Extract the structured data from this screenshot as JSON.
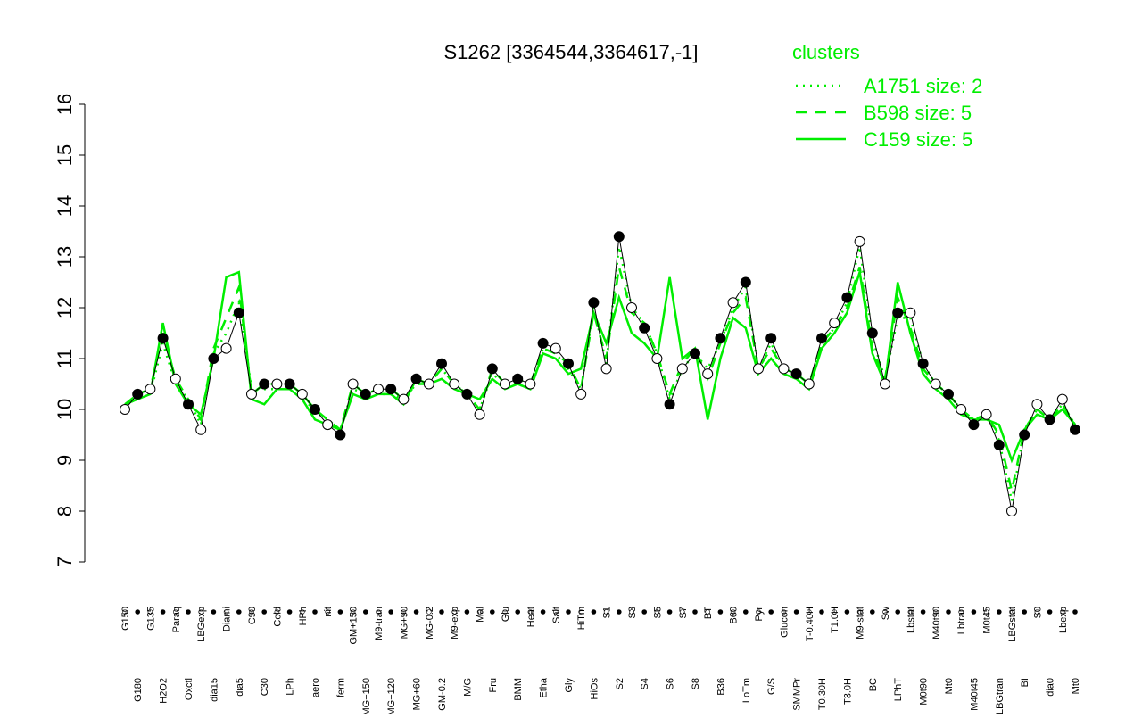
{
  "chart_data": {
    "type": "line",
    "title": "S1262 [3364544,3364617,-1]",
    "legend_title": "clusters",
    "legend_color": "#00ee00",
    "categories": [
      "G150",
      "G180",
      "G135",
      "H2O2",
      "Paraq",
      "Oxctl",
      "LBGexp",
      "dia15",
      "Diami",
      "dia5",
      "C90",
      "C30",
      "Cold",
      "LPh",
      "HPh",
      "aero",
      "nit",
      "ferm",
      "GM+150",
      "MG+150",
      "M9-tran",
      "MG+120",
      "MG+90",
      "MG+60",
      "MG-0.2",
      "GM-0.2",
      "M9-exp",
      "M/G",
      "Mal",
      "Fru",
      "Glu",
      "BMM",
      "Heat",
      "Etha",
      "Salt",
      "Gly",
      "HiTm",
      "HiOs",
      "S1",
      "S2",
      "S3",
      "S4",
      "S5",
      "S6",
      "S7",
      "S8",
      "BT",
      "B36",
      "B60",
      "LoTm",
      "Pyr",
      "G/S",
      "Glucon",
      "SMMPr",
      "T-0.40H",
      "T0.30H",
      "T1.0H",
      "T3.0H",
      "M9-stat",
      "BC",
      "Sw",
      "LPhT",
      "Lbstat",
      "M0t90",
      "M40t90",
      "Mt0",
      "Lbtran",
      "M40t45",
      "M0t45",
      "LBGtran",
      "LBGstat",
      "BI",
      "S0",
      "dia0",
      "Lbexp",
      "Mt0"
    ],
    "values": [
      10.0,
      10.3,
      10.4,
      11.4,
      10.6,
      10.1,
      9.6,
      11.0,
      11.2,
      11.9,
      10.3,
      10.5,
      10.5,
      10.5,
      10.3,
      10.0,
      9.7,
      9.5,
      10.5,
      10.3,
      10.4,
      10.4,
      10.2,
      10.6,
      10.5,
      10.9,
      10.5,
      10.3,
      9.9,
      10.8,
      10.5,
      10.6,
      10.5,
      11.3,
      11.2,
      10.9,
      10.3,
      12.1,
      10.8,
      13.4,
      12.0,
      11.6,
      11.0,
      10.1,
      10.8,
      11.1,
      10.7,
      11.4,
      12.1,
      12.5,
      10.8,
      11.4,
      10.8,
      10.7,
      10.5,
      11.4,
      11.7,
      12.2,
      13.3,
      11.5,
      10.5,
      11.9,
      11.9,
      10.9,
      10.5,
      10.3,
      10.0,
      9.7,
      9.9,
      9.3,
      8.0,
      9.5,
      10.1,
      9.8,
      10.2,
      9.6
    ],
    "color": "#000000",
    "series": [
      {
        "name": "A1751 size: 2",
        "color": "#00ee00",
        "dash": "2,6",
        "values": [
          10.1,
          10.2,
          10.3,
          11.3,
          10.5,
          10.2,
          9.7,
          11.1,
          11.5,
          12.1,
          10.4,
          10.4,
          10.4,
          10.4,
          10.2,
          10.0,
          9.8,
          9.6,
          10.4,
          10.3,
          10.3,
          10.3,
          10.2,
          10.5,
          10.5,
          10.8,
          10.5,
          10.3,
          10.0,
          10.7,
          10.5,
          10.5,
          10.4,
          11.2,
          11.1,
          10.8,
          10.4,
          12.0,
          10.9,
          13.2,
          12.0,
          11.7,
          11.1,
          10.2,
          10.8,
          11.1,
          10.8,
          11.3,
          12.0,
          12.4,
          10.8,
          11.3,
          10.8,
          10.7,
          10.5,
          11.3,
          11.6,
          12.1,
          13.2,
          11.4,
          10.6,
          11.8,
          11.8,
          10.9,
          10.5,
          10.3,
          10.0,
          9.8,
          9.9,
          9.4,
          8.2,
          9.6,
          10.0,
          9.8,
          10.1,
          9.7
        ]
      },
      {
        "name": "B598 size: 5",
        "color": "#00ee00",
        "dash": "12,10",
        "values": [
          10.1,
          10.3,
          10.4,
          11.5,
          10.6,
          10.2,
          9.8,
          11.2,
          11.8,
          12.4,
          10.3,
          10.5,
          10.5,
          10.5,
          10.3,
          10.0,
          9.8,
          9.6,
          10.5,
          10.3,
          10.4,
          10.4,
          10.2,
          10.5,
          10.5,
          10.8,
          10.5,
          10.3,
          10.0,
          10.8,
          10.5,
          10.6,
          10.5,
          11.2,
          11.1,
          10.9,
          10.4,
          11.9,
          11.0,
          12.8,
          11.9,
          11.7,
          11.1,
          10.3,
          10.9,
          11.2,
          10.6,
          11.3,
          11.9,
          12.2,
          10.8,
          11.2,
          10.8,
          10.7,
          10.5,
          11.3,
          11.6,
          12.0,
          12.8,
          11.2,
          10.6,
          12.2,
          11.6,
          10.8,
          10.5,
          10.3,
          10.0,
          9.8,
          9.9,
          9.5,
          8.4,
          9.6,
          10.0,
          9.8,
          10.1,
          9.7
        ]
      },
      {
        "name": "C159 size: 5",
        "color": "#00ee00",
        "dash": "",
        "values": [
          10.1,
          10.2,
          10.3,
          11.7,
          10.5,
          10.1,
          9.9,
          11.0,
          12.6,
          12.7,
          10.2,
          10.1,
          10.4,
          10.4,
          10.2,
          9.8,
          9.7,
          9.6,
          10.3,
          10.2,
          10.3,
          10.3,
          10.1,
          10.6,
          10.5,
          10.6,
          10.4,
          10.3,
          10.2,
          10.6,
          10.4,
          10.5,
          10.4,
          11.1,
          11.0,
          10.7,
          10.8,
          11.9,
          11.3,
          12.2,
          11.5,
          11.3,
          11.0,
          12.6,
          11.0,
          11.2,
          9.8,
          11.0,
          11.8,
          11.6,
          10.7,
          11.0,
          10.7,
          10.6,
          10.4,
          11.2,
          11.5,
          11.9,
          12.7,
          11.1,
          10.5,
          12.5,
          11.5,
          10.7,
          10.4,
          10.2,
          9.9,
          9.8,
          9.8,
          9.7,
          9.0,
          9.6,
          9.9,
          9.8,
          10.0,
          9.7
        ]
      }
    ],
    "ylim": [
      7,
      16
    ],
    "yticks": [
      7,
      8,
      9,
      10,
      11,
      12,
      13,
      14,
      15,
      16
    ]
  }
}
